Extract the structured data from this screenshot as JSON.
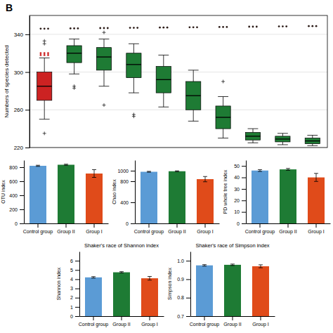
{
  "chart_data": [
    {
      "type": "box",
      "ylabel": "Numbers of species detected",
      "ylim": [
        220,
        360
      ],
      "yticks": [
        220,
        260,
        300,
        340
      ],
      "grid": true,
      "tick_labels": "y",
      "annotation": "B",
      "boxes": [
        {
          "color": "#CC2222",
          "q1": 270,
          "median": 285,
          "q3": 300,
          "whisker_low": 250,
          "whisker_high": 315,
          "outliers_low": [
            235
          ],
          "outliers_high": [
            330,
            333
          ],
          "dots": [
            {
              "value": 318,
              "color": "#CC2222"
            },
            {
              "value": 320,
              "color": "#CC2222"
            },
            {
              "value": 346,
              "color": "#2B1B17"
            }
          ]
        },
        {
          "color": "#1E7B34",
          "q1": 310,
          "median": 320,
          "q3": 328,
          "whisker_low": 298,
          "whisker_high": 335,
          "outliers_low": [
            285,
            283
          ],
          "outliers_high": [],
          "dots": [
            {
              "value": 346.3,
              "color": "#2B1B17"
            }
          ]
        },
        {
          "color": "#1E7B34",
          "q1": 302,
          "median": 316,
          "q3": 326,
          "whisker_low": 285,
          "whisker_high": 335,
          "outliers_low": [
            265
          ],
          "outliers_high": [
            342
          ],
          "dots": [
            {
              "value": 346.6,
              "color": "#2B1B17"
            }
          ]
        },
        {
          "color": "#1E7B34",
          "q1": 294,
          "median": 308,
          "q3": 320,
          "whisker_low": 278,
          "whisker_high": 330,
          "outliers_low": [
            255,
            253
          ],
          "outliers_high": [],
          "dots": [
            {
              "value": 346.9,
              "color": "#2B1B17"
            }
          ]
        },
        {
          "color": "#1E7B34",
          "q1": 278,
          "median": 292,
          "q3": 306,
          "whisker_low": 263,
          "whisker_high": 318,
          "outliers_low": [],
          "outliers_high": [],
          "dots": [
            {
              "value": 347.2,
              "color": "#2B1B17"
            }
          ]
        },
        {
          "color": "#1E7B34",
          "q1": 260,
          "median": 275,
          "q3": 290,
          "whisker_low": 248,
          "whisker_high": 302,
          "outliers_low": [],
          "outliers_high": [],
          "dots": [
            {
              "value": 347.5,
              "color": "#2B1B17"
            }
          ]
        },
        {
          "color": "#1E7B34",
          "q1": 240,
          "median": 252,
          "q3": 264,
          "whisker_low": 230,
          "whisker_high": 274,
          "outliers_low": [],
          "outliers_high": [
            290
          ],
          "dots": [
            {
              "value": 347.8,
              "color": "#2B1B17"
            }
          ]
        },
        {
          "color": "#1E7B34",
          "q1": 228,
          "median": 232,
          "q3": 236,
          "whisker_low": 225,
          "whisker_high": 240,
          "outliers_low": [],
          "outliers_high": [],
          "dots": [
            {
              "value": 348.1,
              "color": "#2B1B17"
            }
          ]
        },
        {
          "color": "#1E7B34",
          "q1": 226,
          "median": 229,
          "q3": 232,
          "whisker_low": 223,
          "whisker_high": 235,
          "outliers_low": [],
          "outliers_high": [],
          "dots": [
            {
              "value": 348.4,
              "color": "#2B1B17"
            }
          ]
        },
        {
          "color": "#1E7B34",
          "q1": 224,
          "median": 227,
          "q3": 230,
          "whisker_low": 222,
          "whisker_high": 233,
          "outliers_low": [],
          "outliers_high": [],
          "dots": [
            {
              "value": 348.7,
              "color": "#2B1B17"
            }
          ]
        }
      ]
    },
    {
      "type": "bar",
      "ylabel": "OTU index",
      "categories": [
        "Control group",
        "Group II",
        "Group I"
      ],
      "values": [
        820,
        835,
        710
      ],
      "errors": [
        8,
        8,
        55
      ],
      "colors": [
        "#5B9BD5",
        "#1E7B34",
        "#E04B1A"
      ],
      "ylim": [
        0,
        900
      ],
      "yticks": [
        0,
        200,
        400,
        600,
        800
      ]
    },
    {
      "type": "bar",
      "ylabel": "Chao index",
      "categories": [
        "Control group",
        "Group II",
        "Group I"
      ],
      "values": [
        980,
        990,
        840
      ],
      "errors": [
        8,
        8,
        50
      ],
      "colors": [
        "#5B9BD5",
        "#1E7B34",
        "#E04B1A"
      ],
      "ylim": [
        0,
        1200
      ],
      "yticks": [
        0,
        400,
        800,
        1000
      ]
    },
    {
      "type": "bar",
      "ylabel": "PD whole tree index",
      "categories": [
        "Control group",
        "Group II",
        "Group I"
      ],
      "values": [
        46,
        47,
        40
      ],
      "errors": [
        0.8,
        0.8,
        3.5
      ],
      "colors": [
        "#5B9BD5",
        "#1E7B34",
        "#E04B1A"
      ],
      "ylim": [
        0,
        55
      ],
      "yticks": [
        0,
        10,
        20,
        30,
        40,
        50
      ]
    },
    {
      "type": "bar",
      "title": "Shaker's race of Shannon index",
      "ylabel": "Shannon index",
      "categories": [
        "Control group",
        "Group II",
        "Group I"
      ],
      "values": [
        4.2,
        4.75,
        4.1
      ],
      "errors": [
        0.08,
        0.07,
        0.2
      ],
      "colors": [
        "#5B9BD5",
        "#1E7B34",
        "#E04B1A"
      ],
      "ylim": [
        0,
        7
      ],
      "yticks": [
        0,
        1,
        2,
        3,
        4,
        5,
        6
      ]
    },
    {
      "type": "bar",
      "title": "Shaker's race of Simpson index",
      "ylabel": "Simpson index",
      "categories": [
        "Control group",
        "Group II",
        "Group I"
      ],
      "values": [
        0.975,
        0.978,
        0.97
      ],
      "errors": [
        0.004,
        0.004,
        0.008
      ],
      "colors": [
        "#5B9BD5",
        "#1E7B34",
        "#E04B1A"
      ],
      "ylim": [
        0.7,
        1.05
      ],
      "yticks": [
        0.7,
        0.8,
        0.9,
        {
          "value": 1.0,
          "label": "1.0"
        }
      ]
    }
  ]
}
